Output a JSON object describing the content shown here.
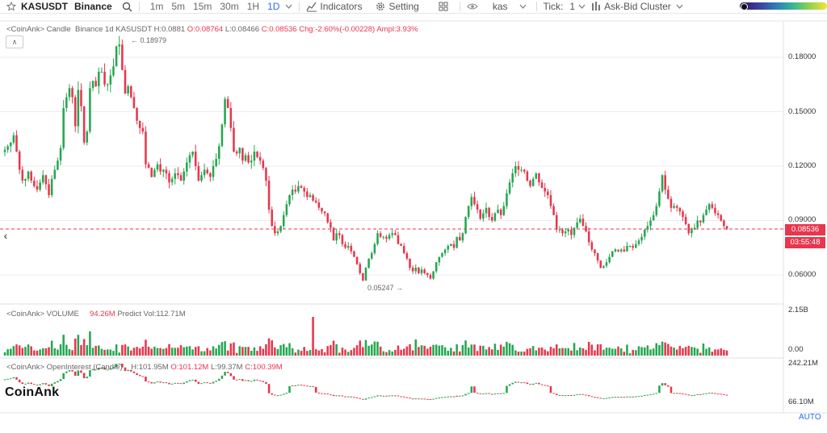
{
  "toolbar": {
    "symbol": "KASUSDT",
    "exchange": "Binance",
    "timeframes": [
      "1m",
      "5m",
      "15m",
      "30m",
      "1H",
      "1D"
    ],
    "active_timeframe": "1D",
    "indicators_label": "Indicators",
    "setting_label": "Setting",
    "search_term": "kas",
    "tick_label": "Tick:",
    "tick_value": "1",
    "cluster_label": "Ask-Bid Cluster"
  },
  "price_pane": {
    "source": "<CoinAnk>",
    "label": "Candle",
    "exchange": "Binance",
    "interval": "1d",
    "symbol": "KASUSDT",
    "high": "H:0.0881",
    "open": "O:0.08764",
    "low": "L:0.08466",
    "close": "C:0.08536",
    "change": "Chg:-2.60%(-0.00228)",
    "ampl": "Ampl:3.93%",
    "max_label": "← 0.18979",
    "min_label": "0.05247 →",
    "axis": [
      "0.18000",
      "0.15000",
      "0.12000",
      "0.09000",
      "0.06000"
    ],
    "last_price": "0.08536",
    "countdown": "03:55:48"
  },
  "volume_pane": {
    "source": "<CoinAnk>",
    "label": "VOLUME",
    "value": "94.26M",
    "predict": "Predict Vol:112.71M",
    "axis": [
      "2.15B",
      "0.00"
    ]
  },
  "oi_pane": {
    "source": "<CoinAnk>",
    "label": "OpenInterest (Candle)",
    "high": "H:101.95M",
    "open": "O:101.12M",
    "low": "L:99.37M",
    "close": "C:100.39M",
    "axis": [
      "242.21M",
      "66.10M"
    ]
  },
  "watermark": "CoinAnk",
  "auto_label": "AUTO",
  "colors": {
    "up": "#25a750",
    "down": "#e8364d",
    "accent": "#2a6ef0",
    "grid": "#ececec"
  },
  "chart_data": {
    "type": "candlestick",
    "ylim": [
      0.045,
      0.195
    ],
    "y_ticks": [
      0.06,
      0.09,
      0.12,
      0.15,
      0.18
    ],
    "close": [
      0.129,
      0.131,
      0.133,
      0.137,
      0.128,
      0.118,
      0.112,
      0.113,
      0.117,
      0.112,
      0.109,
      0.107,
      0.111,
      0.115,
      0.11,
      0.104,
      0.113,
      0.118,
      0.123,
      0.13,
      0.152,
      0.158,
      0.163,
      0.158,
      0.142,
      0.162,
      0.153,
      0.133,
      0.139,
      0.163,
      0.167,
      0.164,
      0.172,
      0.172,
      0.165,
      0.165,
      0.17,
      0.175,
      0.186,
      0.187,
      0.173,
      0.16,
      0.164,
      0.158,
      0.152,
      0.145,
      0.141,
      0.139,
      0.121,
      0.119,
      0.114,
      0.118,
      0.121,
      0.117,
      0.118,
      0.116,
      0.111,
      0.113,
      0.116,
      0.115,
      0.112,
      0.117,
      0.122,
      0.126,
      0.128,
      0.12,
      0.112,
      0.115,
      0.118,
      0.116,
      0.114,
      0.12,
      0.124,
      0.131,
      0.143,
      0.157,
      0.152,
      0.141,
      0.128,
      0.127,
      0.13,
      0.123,
      0.126,
      0.122,
      0.123,
      0.128,
      0.125,
      0.123,
      0.119,
      0.112,
      0.096,
      0.087,
      0.083,
      0.084,
      0.087,
      0.093,
      0.099,
      0.104,
      0.107,
      0.106,
      0.109,
      0.108,
      0.106,
      0.103,
      0.104,
      0.101,
      0.1,
      0.097,
      0.095,
      0.094,
      0.089,
      0.086,
      0.079,
      0.083,
      0.082,
      0.077,
      0.075,
      0.076,
      0.073,
      0.07,
      0.066,
      0.061,
      0.057,
      0.064,
      0.069,
      0.072,
      0.077,
      0.083,
      0.081,
      0.081,
      0.08,
      0.082,
      0.083,
      0.082,
      0.077,
      0.076,
      0.072,
      0.069,
      0.064,
      0.062,
      0.064,
      0.061,
      0.063,
      0.061,
      0.06,
      0.058,
      0.062,
      0.067,
      0.07,
      0.072,
      0.074,
      0.076,
      0.077,
      0.075,
      0.081,
      0.079,
      0.083,
      0.092,
      0.098,
      0.103,
      0.099,
      0.096,
      0.091,
      0.094,
      0.097,
      0.092,
      0.09,
      0.094,
      0.096,
      0.093,
      0.098,
      0.105,
      0.111,
      0.116,
      0.12,
      0.118,
      0.118,
      0.117,
      0.112,
      0.109,
      0.113,
      0.116,
      0.111,
      0.108,
      0.106,
      0.104,
      0.098,
      0.093,
      0.085,
      0.085,
      0.083,
      0.084,
      0.085,
      0.082,
      0.086,
      0.089,
      0.091,
      0.087,
      0.084,
      0.078,
      0.074,
      0.072,
      0.068,
      0.064,
      0.065,
      0.067,
      0.07,
      0.073,
      0.074,
      0.073,
      0.074,
      0.073,
      0.076,
      0.076,
      0.075,
      0.077,
      0.079,
      0.081,
      0.085,
      0.087,
      0.09,
      0.093,
      0.098,
      0.106,
      0.115,
      0.107,
      0.102,
      0.097,
      0.098,
      0.097,
      0.095,
      0.092,
      0.088,
      0.083,
      0.085,
      0.086,
      0.09,
      0.089,
      0.093,
      0.096,
      0.099,
      0.097,
      0.094,
      0.093,
      0.09,
      0.087,
      0.0854
    ],
    "volume_range": [
      0,
      2150000000
    ],
    "open_interest_range": [
      66100000,
      242210000
    ]
  }
}
